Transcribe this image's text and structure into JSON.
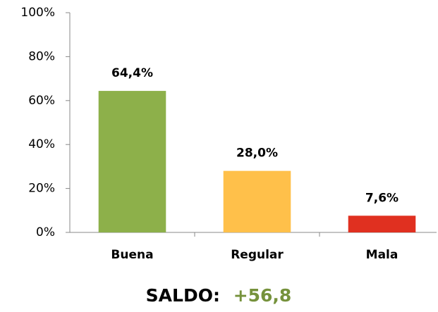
{
  "chart_data": {
    "type": "bar",
    "categories": [
      "Buena",
      "Regular",
      "Mala"
    ],
    "values": [
      64.4,
      28.0,
      7.6
    ],
    "value_labels": [
      "64,4%",
      "28,0%",
      "7,6%"
    ],
    "colors": [
      "#8db04a",
      "#ffc04a",
      "#e03020"
    ],
    "ylim": [
      0,
      100
    ],
    "yticks": [
      {
        "value": 0,
        "label": "0%"
      },
      {
        "value": 20,
        "label": "20%"
      },
      {
        "value": 40,
        "label": "40%"
      },
      {
        "value": 60,
        "label": "60%"
      },
      {
        "value": 80,
        "label": "80%"
      },
      {
        "value": 100,
        "label": "100%"
      }
    ],
    "grid": false,
    "annotations": [
      {
        "text": "SALDO:",
        "color": "#000000"
      },
      {
        "text": "+56,8",
        "color": "#76923c"
      }
    ]
  }
}
